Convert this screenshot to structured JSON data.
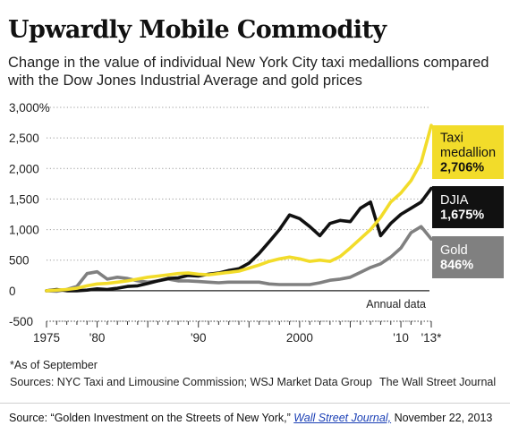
{
  "header": {
    "title": "Upwardly Mobile Commodity",
    "subtitle": "Change in the value of individual New York City taxi medallions compared with the Dow Jones Industrial Average and gold prices"
  },
  "chart_data": {
    "type": "line",
    "xlabel": "Annual data",
    "ylabel": "",
    "xlim": [
      1975,
      2013
    ],
    "ylim": [
      -500,
      3000
    ],
    "y_ticks": [
      {
        "value": 3000,
        "label": "3,000%"
      },
      {
        "value": 2500,
        "label": "2,500"
      },
      {
        "value": 2000,
        "label": "2,000"
      },
      {
        "value": 1500,
        "label": "1,500"
      },
      {
        "value": 1000,
        "label": "1,000"
      },
      {
        "value": 500,
        "label": "500"
      },
      {
        "value": 0,
        "label": "0"
      },
      {
        "value": -500,
        "label": "-500"
      }
    ],
    "x_ticks": [
      {
        "value": 1975,
        "label": "1975"
      },
      {
        "value": 1980,
        "label": "'80"
      },
      {
        "value": 1990,
        "label": "'90"
      },
      {
        "value": 2000,
        "label": "2000"
      },
      {
        "value": 2010,
        "label": "'10"
      },
      {
        "value": 2013,
        "label": "'13*"
      }
    ],
    "grid": "horizontal dotted",
    "series": [
      {
        "name": "Gold",
        "color": "#808080",
        "end_label": [
          "Gold",
          "846%"
        ],
        "x": [
          1975,
          1976,
          1977,
          1978,
          1979,
          1980,
          1981,
          1982,
          1983,
          1984,
          1985,
          1986,
          1987,
          1988,
          1989,
          1990,
          1991,
          1992,
          1993,
          1994,
          1995,
          1996,
          1997,
          1998,
          1999,
          2000,
          2001,
          2002,
          2003,
          2004,
          2005,
          2006,
          2007,
          2008,
          2009,
          2010,
          2011,
          2012,
          2013
        ],
        "values": [
          0,
          -10,
          20,
          70,
          280,
          310,
          190,
          220,
          200,
          160,
          140,
          160,
          190,
          160,
          160,
          150,
          140,
          130,
          140,
          140,
          140,
          140,
          110,
          100,
          100,
          100,
          100,
          130,
          170,
          190,
          220,
          300,
          380,
          440,
          550,
          700,
          950,
          1050,
          846
        ]
      },
      {
        "name": "DJIA",
        "color": "#111111",
        "end_label": [
          "DJIA",
          "1,675%"
        ],
        "x": [
          1975,
          1976,
          1977,
          1978,
          1979,
          1980,
          1981,
          1982,
          1983,
          1984,
          1985,
          1986,
          1987,
          1988,
          1989,
          1990,
          1991,
          1992,
          1993,
          1994,
          1995,
          1996,
          1997,
          1998,
          1999,
          2000,
          2001,
          2002,
          2003,
          2004,
          2005,
          2006,
          2007,
          2008,
          2009,
          2010,
          2011,
          2012,
          2013
        ],
        "values": [
          0,
          20,
          0,
          0,
          10,
          30,
          20,
          40,
          70,
          80,
          120,
          160,
          200,
          210,
          250,
          240,
          270,
          290,
          330,
          360,
          450,
          610,
          800,
          1000,
          1240,
          1180,
          1050,
          900,
          1100,
          1150,
          1130,
          1350,
          1450,
          900,
          1100,
          1250,
          1350,
          1450,
          1675
        ]
      },
      {
        "name": "Taxi medallion",
        "color": "#f2dc2a",
        "end_label": [
          "Taxi",
          "medallion",
          "2,706%"
        ],
        "x": [
          1975,
          1976,
          1977,
          1978,
          1979,
          1980,
          1981,
          1982,
          1983,
          1984,
          1985,
          1986,
          1987,
          1988,
          1989,
          1990,
          1991,
          1992,
          1993,
          1994,
          1995,
          1996,
          1997,
          1998,
          1999,
          2000,
          2001,
          2002,
          2003,
          2004,
          2005,
          2006,
          2007,
          2008,
          2009,
          2010,
          2011,
          2012,
          2013
        ],
        "values": [
          0,
          10,
          20,
          40,
          80,
          110,
          120,
          140,
          160,
          190,
          220,
          240,
          260,
          280,
          290,
          270,
          260,
          280,
          300,
          320,
          370,
          420,
          480,
          520,
          550,
          520,
          480,
          500,
          480,
          560,
          700,
          850,
          1000,
          1200,
          1450,
          1600,
          1800,
          2100,
          2706
        ]
      }
    ]
  },
  "notes": {
    "asterisk": "*As of September",
    "sources": "Sources: NYC Taxi and Limousine Commission; WSJ Market Data Group",
    "credit": "The Wall Street Journal"
  },
  "source_line": {
    "prefix": "Source: “Golden Investment on the Streets of New York,” ",
    "link_text": "Wall Street Journal,",
    "suffix": " November 22, 2013"
  }
}
